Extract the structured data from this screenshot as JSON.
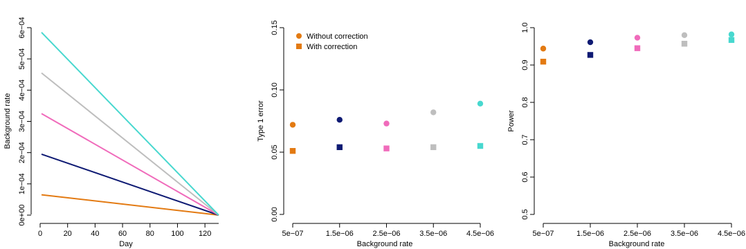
{
  "colors": {
    "orange": "#E37A12",
    "navy": "#0E1A73",
    "pink": "#F06BBB",
    "grey": "#BEBEBE",
    "turquoise": "#48D8CF"
  },
  "chart_data": [
    {
      "type": "line",
      "xlabel": "Day",
      "ylabel": "Background rate",
      "xlim": [
        0,
        130
      ],
      "ylim": [
        0,
        0.0006
      ],
      "x_ticks": [
        0,
        20,
        40,
        60,
        80,
        100,
        120
      ],
      "x_tick_labels": [
        "0",
        "20",
        "40",
        "60",
        "80",
        "100",
        "120"
      ],
      "y_ticks": [
        0,
        0.0001,
        0.0002,
        0.0003,
        0.0004,
        0.0005,
        0.0006
      ],
      "y_tick_labels": [
        "0e+00",
        "1e−04",
        "2e−04",
        "3e−04",
        "4e−04",
        "5e−04",
        "6e−04"
      ],
      "series": [
        {
          "color": "#E37A12",
          "x": [
            1,
            130
          ],
          "y": [
            6.5e-05,
            0
          ]
        },
        {
          "color": "#0E1A73",
          "x": [
            1,
            130
          ],
          "y": [
            0.000195,
            0
          ]
        },
        {
          "color": "#F06BBB",
          "x": [
            1,
            130
          ],
          "y": [
            0.000325,
            0
          ]
        },
        {
          "color": "#BEBEBE",
          "x": [
            1,
            130
          ],
          "y": [
            0.000455,
            0
          ]
        },
        {
          "color": "#48D8CF",
          "x": [
            1,
            130
          ],
          "y": [
            0.000585,
            0
          ]
        }
      ]
    },
    {
      "type": "scatter",
      "xlabel": "Background rate",
      "ylabel": "Type 1 error",
      "ylim": [
        0,
        0.15
      ],
      "categories": [
        "5e−07",
        "1.5e−06",
        "2.5e−06",
        "3.5e−06",
        "4.5e−06"
      ],
      "y_ticks": [
        0,
        0.05,
        0.1,
        0.15
      ],
      "y_tick_labels": [
        "0.00",
        "0.05",
        "0.10",
        "0.15"
      ],
      "point_colors": [
        "#E37A12",
        "#0E1A73",
        "#F06BBB",
        "#BEBEBE",
        "#48D8CF"
      ],
      "legend": {
        "placement": "top-left",
        "items": [
          {
            "label": "Without correction",
            "shape": "circle",
            "color": "#E37A12"
          },
          {
            "label": "With correction",
            "shape": "square",
            "color": "#E37A12"
          }
        ]
      },
      "series": [
        {
          "name": "Without correction",
          "shape": "circle",
          "values": [
            0.072,
            0.076,
            0.073,
            0.082,
            0.089
          ]
        },
        {
          "name": "With correction",
          "shape": "square",
          "values": [
            0.051,
            0.054,
            0.053,
            0.054,
            0.055
          ]
        }
      ]
    },
    {
      "type": "scatter",
      "xlabel": "Background rate",
      "ylabel": "Power",
      "ylim": [
        0.5,
        1.0
      ],
      "categories": [
        "5e−07",
        "1.5e−06",
        "2.5e−06",
        "3.5e−06",
        "4.5e−06"
      ],
      "y_ticks": [
        0.5,
        0.6,
        0.7,
        0.8,
        0.9,
        1.0
      ],
      "y_tick_labels": [
        "0.5",
        "0.6",
        "0.7",
        "0.8",
        "0.9",
        "1.0"
      ],
      "point_colors": [
        "#E37A12",
        "#0E1A73",
        "#F06BBB",
        "#BEBEBE",
        "#48D8CF"
      ],
      "series": [
        {
          "shape": "circle",
          "values": [
            0.944,
            0.961,
            0.973,
            0.98,
            0.982
          ]
        },
        {
          "shape": "square",
          "values": [
            0.909,
            0.927,
            0.945,
            0.957,
            0.967
          ]
        }
      ]
    }
  ]
}
